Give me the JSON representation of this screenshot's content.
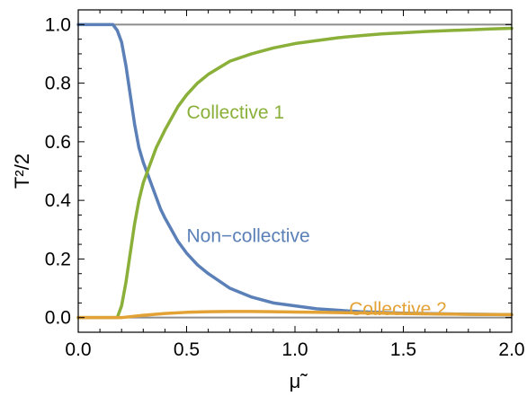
{
  "chart_data": {
    "type": "line",
    "title": "",
    "xlabel": "μ̃",
    "ylabel": "T²/2",
    "xlim": [
      0.0,
      2.0
    ],
    "ylim": [
      -0.05,
      1.05
    ],
    "xticks": [
      "0.0",
      "0.5",
      "1.0",
      "1.5",
      "2.0"
    ],
    "xtick_values": [
      0.0,
      0.5,
      1.0,
      1.5,
      2.0
    ],
    "yticks": [
      "0.0",
      "0.2",
      "0.4",
      "0.6",
      "0.8",
      "1.0"
    ],
    "ytick_values": [
      0.0,
      0.2,
      0.4,
      0.6,
      0.8,
      1.0
    ],
    "grid": false,
    "legend": "none",
    "reference_lines": [
      {
        "y": 0.0,
        "color": "#8c8c8c"
      },
      {
        "y": 1.0,
        "color": "#8c8c8c"
      }
    ],
    "series": [
      {
        "name": "Non−collective",
        "color": "#5b80b8",
        "label_at": [
          0.5,
          0.28
        ],
        "x": [
          0.0,
          0.1,
          0.16,
          0.18,
          0.2,
          0.22,
          0.24,
          0.26,
          0.28,
          0.3,
          0.32,
          0.34,
          0.36,
          0.38,
          0.4,
          0.43,
          0.46,
          0.5,
          0.55,
          0.6,
          0.7,
          0.8,
          0.9,
          1.0,
          1.1,
          1.2,
          1.3,
          1.5,
          1.75,
          2.0
        ],
        "y": [
          1.0,
          1.0,
          1.0,
          0.98,
          0.94,
          0.86,
          0.76,
          0.66,
          0.58,
          0.53,
          0.49,
          0.45,
          0.41,
          0.37,
          0.34,
          0.3,
          0.26,
          0.22,
          0.18,
          0.15,
          0.1,
          0.07,
          0.05,
          0.04,
          0.03,
          0.025,
          0.02,
          0.015,
          0.012,
          0.01
        ]
      },
      {
        "name": "Collective 1",
        "color": "#8ab03a",
        "label_at": [
          0.5,
          0.7
        ],
        "x": [
          0.0,
          0.1,
          0.18,
          0.2,
          0.22,
          0.24,
          0.26,
          0.28,
          0.3,
          0.32,
          0.34,
          0.36,
          0.38,
          0.4,
          0.43,
          0.46,
          0.5,
          0.55,
          0.6,
          0.7,
          0.8,
          0.9,
          1.0,
          1.1,
          1.2,
          1.3,
          1.4,
          1.5,
          1.6,
          1.7,
          1.8,
          1.9,
          2.0
        ],
        "y": [
          0.0,
          0.0,
          0.0,
          0.04,
          0.12,
          0.22,
          0.32,
          0.4,
          0.46,
          0.5,
          0.54,
          0.58,
          0.61,
          0.64,
          0.68,
          0.72,
          0.76,
          0.8,
          0.83,
          0.875,
          0.9,
          0.92,
          0.935,
          0.945,
          0.955,
          0.962,
          0.968,
          0.972,
          0.976,
          0.979,
          0.982,
          0.985,
          0.987
        ]
      },
      {
        "name": "Collective 2",
        "color": "#e3a235",
        "label_at": [
          1.25,
          0.03
        ],
        "x": [
          0.0,
          0.2,
          0.3,
          0.4,
          0.5,
          0.6,
          0.7,
          0.8,
          0.9,
          1.0,
          1.1,
          1.2,
          1.4,
          1.6,
          1.8,
          2.0
        ],
        "y": [
          0.0,
          0.0,
          0.008,
          0.014,
          0.018,
          0.02,
          0.021,
          0.021,
          0.02,
          0.019,
          0.018,
          0.017,
          0.015,
          0.013,
          0.011,
          0.01
        ]
      }
    ]
  }
}
